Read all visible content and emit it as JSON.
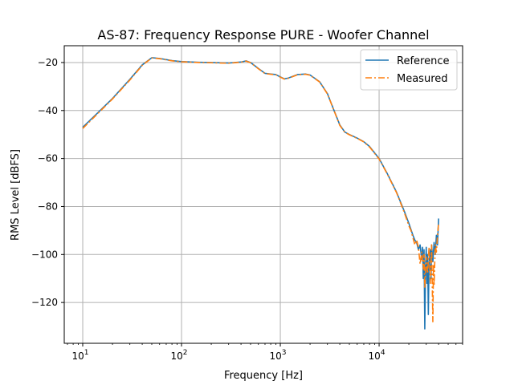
{
  "chart_data": {
    "type": "line",
    "title": "AS-87: Frequency Response PURE - Woofer Channel",
    "xlabel": "Frequency [Hz]",
    "ylabel": "RMS Level [dBFS]",
    "xscale": "log",
    "xlim": [
      6.5,
      70000
    ],
    "ylim": [
      -137,
      -13
    ],
    "grid": true,
    "legend_position": "top-right",
    "x_ticks": [
      {
        "value": 10,
        "base": "10",
        "exp": "1"
      },
      {
        "value": 100,
        "base": "10",
        "exp": "2"
      },
      {
        "value": 1000,
        "base": "10",
        "exp": "3"
      },
      {
        "value": 10000,
        "base": "10",
        "exp": "4"
      }
    ],
    "y_ticks": [
      -20,
      -40,
      -60,
      -80,
      -100,
      -120
    ],
    "y_tick_labels": [
      "−20",
      "−40",
      "−60",
      "−80",
      "−100",
      "−120"
    ],
    "series": [
      {
        "name": "Reference",
        "color": "#1f77b4",
        "style": "solid",
        "points": [
          [
            10,
            -47
          ],
          [
            15,
            -40
          ],
          [
            20,
            -35
          ],
          [
            30,
            -27
          ],
          [
            40,
            -21
          ],
          [
            50,
            -18
          ],
          [
            60,
            -18.3
          ],
          [
            80,
            -19.2
          ],
          [
            100,
            -19.6
          ],
          [
            150,
            -19.9
          ],
          [
            200,
            -20
          ],
          [
            300,
            -20.2
          ],
          [
            400,
            -19.8
          ],
          [
            450,
            -19.3
          ],
          [
            500,
            -20
          ],
          [
            600,
            -22.5
          ],
          [
            700,
            -24.5
          ],
          [
            800,
            -24.8
          ],
          [
            900,
            -25
          ],
          [
            1000,
            -26
          ],
          [
            1100,
            -26.8
          ],
          [
            1200,
            -26.5
          ],
          [
            1500,
            -25
          ],
          [
            1800,
            -24.8
          ],
          [
            2000,
            -25.2
          ],
          [
            2500,
            -28
          ],
          [
            3000,
            -33
          ],
          [
            3500,
            -40
          ],
          [
            4000,
            -46
          ],
          [
            4500,
            -49
          ],
          [
            5000,
            -50
          ],
          [
            6000,
            -51.5
          ],
          [
            7000,
            -53
          ],
          [
            8000,
            -55
          ],
          [
            10000,
            -60
          ],
          [
            12000,
            -66
          ],
          [
            15000,
            -74
          ],
          [
            18000,
            -82
          ],
          [
            20000,
            -87
          ],
          [
            22000,
            -92
          ],
          [
            23000,
            -94
          ],
          [
            24000,
            -95
          ],
          [
            25000,
            -98
          ],
          [
            26000,
            -96
          ],
          [
            27000,
            -102
          ],
          [
            27500,
            -97
          ],
          [
            28000,
            -110
          ],
          [
            28500,
            -98
          ],
          [
            29000,
            -131
          ],
          [
            29500,
            -105
          ],
          [
            30000,
            -97
          ],
          [
            30500,
            -112
          ],
          [
            31000,
            -100
          ],
          [
            31500,
            -125
          ],
          [
            32000,
            -104
          ],
          [
            33000,
            -98
          ],
          [
            33500,
            -110
          ],
          [
            34000,
            -96
          ],
          [
            35000,
            -103
          ],
          [
            36000,
            -95
          ],
          [
            37000,
            -100
          ],
          [
            38000,
            -92
          ],
          [
            39000,
            -96
          ],
          [
            40000,
            -85
          ]
        ]
      },
      {
        "name": "Measured",
        "color": "#ff7f0e",
        "style": "dashdot",
        "points": [
          [
            10,
            -47.5
          ],
          [
            15,
            -40.3
          ],
          [
            20,
            -35.2
          ],
          [
            30,
            -27.3
          ],
          [
            40,
            -21.2
          ],
          [
            50,
            -18.1
          ],
          [
            60,
            -18.4
          ],
          [
            80,
            -19.3
          ],
          [
            100,
            -19.7
          ],
          [
            150,
            -20
          ],
          [
            200,
            -20.1
          ],
          [
            300,
            -20.3
          ],
          [
            400,
            -19.9
          ],
          [
            450,
            -19.4
          ],
          [
            500,
            -20.1
          ],
          [
            600,
            -22.6
          ],
          [
            700,
            -24.6
          ],
          [
            800,
            -24.9
          ],
          [
            900,
            -25.1
          ],
          [
            1000,
            -26.1
          ],
          [
            1100,
            -26.9
          ],
          [
            1200,
            -26.6
          ],
          [
            1500,
            -25.1
          ],
          [
            1800,
            -24.9
          ],
          [
            2000,
            -25.3
          ],
          [
            2500,
            -28.1
          ],
          [
            3000,
            -33.1
          ],
          [
            3500,
            -40.1
          ],
          [
            4000,
            -46.2
          ],
          [
            4500,
            -49.1
          ],
          [
            5000,
            -50.1
          ],
          [
            6000,
            -51.6
          ],
          [
            7000,
            -53.1
          ],
          [
            8000,
            -55.2
          ],
          [
            10000,
            -60.2
          ],
          [
            12000,
            -66.2
          ],
          [
            15000,
            -74.2
          ],
          [
            18000,
            -82.5
          ],
          [
            20000,
            -88
          ],
          [
            21000,
            -90
          ],
          [
            22000,
            -93
          ],
          [
            23000,
            -96
          ],
          [
            24000,
            -94
          ],
          [
            25000,
            -97
          ],
          [
            26000,
            -104
          ],
          [
            27000,
            -99
          ],
          [
            28000,
            -106
          ],
          [
            28500,
            -100
          ],
          [
            29000,
            -114
          ],
          [
            30000,
            -101
          ],
          [
            31000,
            -108
          ],
          [
            32000,
            -97
          ],
          [
            33000,
            -112
          ],
          [
            34000,
            -96
          ],
          [
            35000,
            -128
          ],
          [
            35500,
            -104
          ],
          [
            36000,
            -113
          ],
          [
            37000,
            -96
          ],
          [
            38000,
            -99
          ],
          [
            39000,
            -92
          ],
          [
            40000,
            -87
          ]
        ]
      }
    ]
  }
}
